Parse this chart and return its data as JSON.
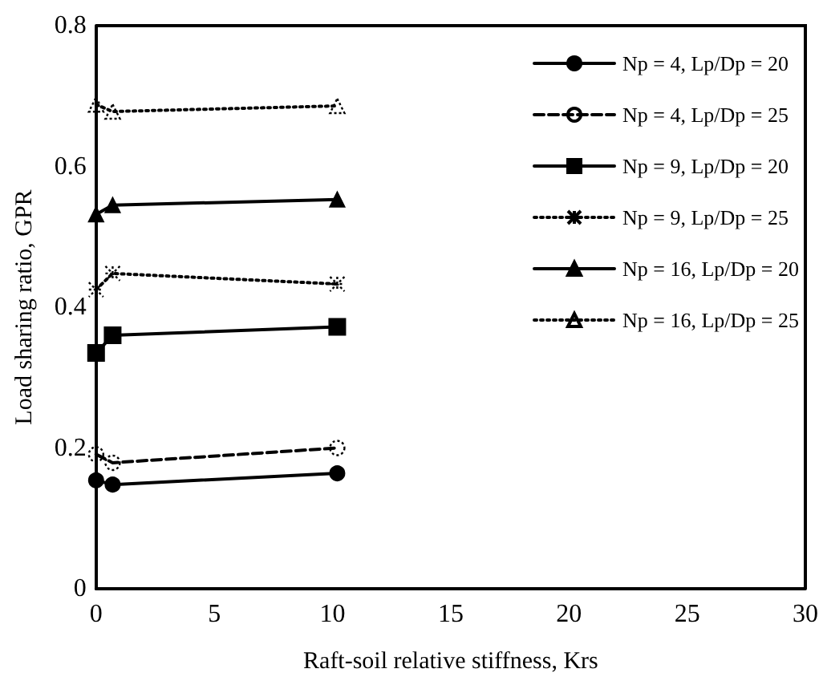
{
  "chart_data": {
    "type": "line",
    "xlabel": "Raft-soil relative stiffness, Krs",
    "ylabel": "Load sharing ratio, GPR",
    "x": [
      0,
      0.7,
      10.2
    ],
    "series": [
      {
        "name": "Np = 4, Lp/Dp = 20",
        "color": "#000000",
        "values": [
          0.154,
          0.148,
          0.164
        ],
        "marker": "circle",
        "line_style": "solid"
      },
      {
        "name": "Np = 4, Lp/Dp = 25",
        "color": "#000000",
        "values": [
          0.191,
          0.179,
          0.2
        ],
        "marker": "circle",
        "line_style": "dashed"
      },
      {
        "name": "Np = 9, Lp/Dp = 20",
        "color": "#000000",
        "values": [
          0.335,
          0.36,
          0.372
        ],
        "marker": "square",
        "line_style": "solid"
      },
      {
        "name": "Np = 9, Lp/Dp = 25",
        "color": "#000000",
        "values": [
          0.425,
          0.448,
          0.433
        ],
        "marker": "cross",
        "line_style": "dotted"
      },
      {
        "name": "Np = 16, Lp/Dp = 20",
        "color": "#000000",
        "values": [
          0.532,
          0.545,
          0.553
        ],
        "marker": "triangle",
        "line_style": "solid"
      },
      {
        "name": "Np = 16, Lp/Dp = 25",
        "color": "#000000",
        "values": [
          0.688,
          0.678,
          0.686
        ],
        "marker": "triangle",
        "line_style": "dotted"
      }
    ],
    "xlim": [
      0,
      30
    ],
    "xticks": [
      0,
      5,
      10,
      15,
      20,
      25,
      30
    ],
    "ylim": [
      0,
      0.8
    ],
    "yticks": [
      0,
      0.2,
      0.4,
      0.6,
      0.8
    ],
    "grid": false,
    "legend": "top right"
  }
}
